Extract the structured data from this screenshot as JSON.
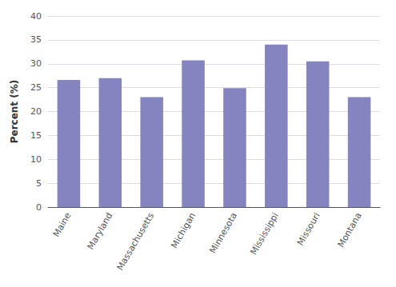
{
  "chart_data": {
    "type": "bar",
    "categories": [
      "Maine",
      "Maryland",
      "Massachusetts",
      "Michigan",
      "Minnesota",
      "Mississippi",
      "Missouri",
      "Montana"
    ],
    "values": [
      26.6,
      27.0,
      23.0,
      30.7,
      24.9,
      34.0,
      30.5,
      23.0
    ],
    "color": "#8484c0",
    "ylabel": "Percent (%)",
    "ylim": [
      0,
      40
    ],
    "yticks": [
      0,
      5,
      10,
      15,
      20,
      25,
      30,
      35,
      40
    ],
    "grid": true
  }
}
